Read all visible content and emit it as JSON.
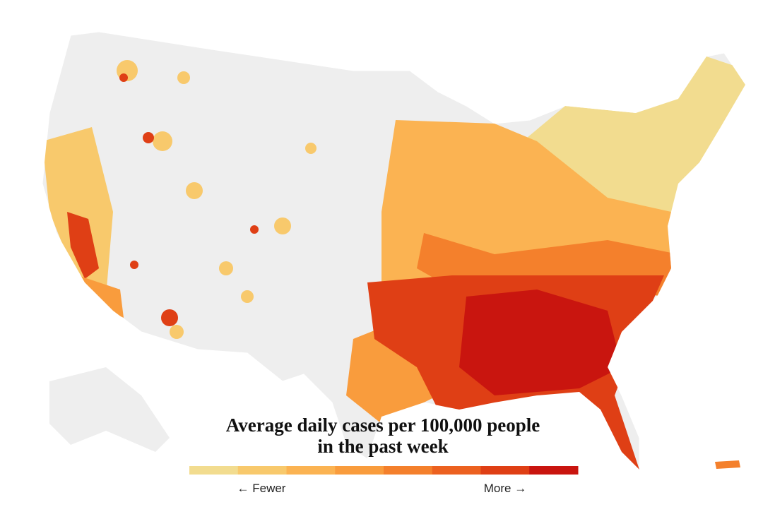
{
  "title_lines": [
    "Average daily cases per 100,000 people",
    "in the past week"
  ],
  "legend": {
    "colors": [
      "#f2dc8f",
      "#f8c96c",
      "#fbb352",
      "#f99c3d",
      "#f4802c",
      "#ec6120",
      "#df3f15",
      "#c9150f"
    ],
    "low_label": "← Fewer",
    "high_label": "More →"
  }
}
